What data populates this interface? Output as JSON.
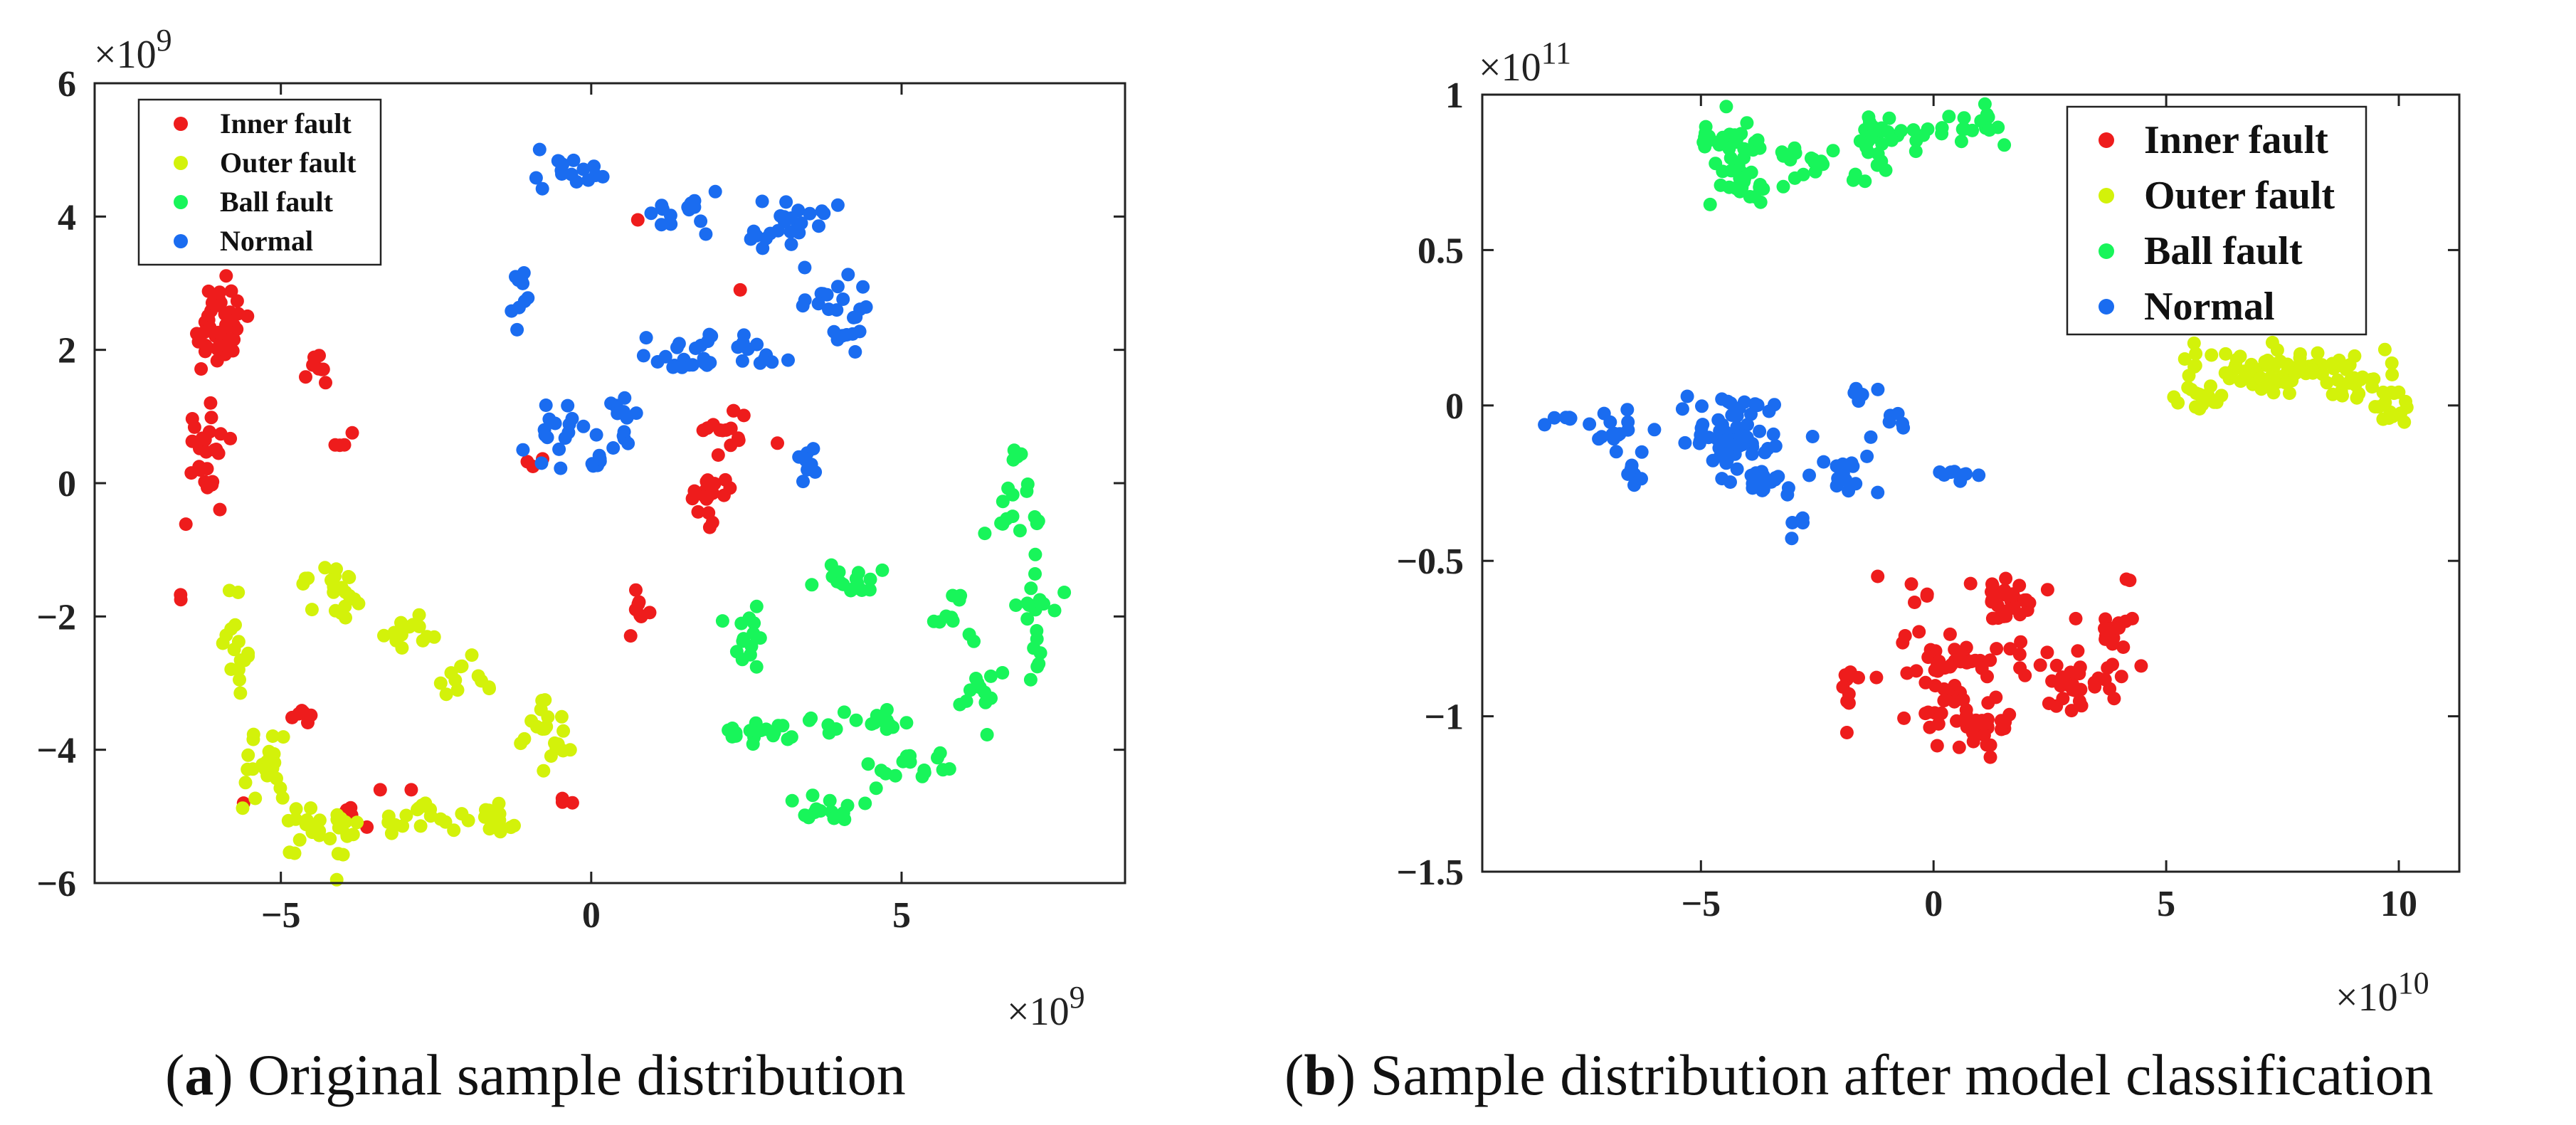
{
  "chart_data": [
    {
      "type": "scatter",
      "id": "a",
      "caption_letter": "a",
      "caption": "Original sample distribution",
      "x_exponent_label": "×10",
      "x_exponent": "9",
      "y_exponent_label": "×10",
      "y_exponent": "9",
      "xlim": [
        -8,
        8.6
      ],
      "ylim": [
        -6,
        6
      ],
      "xticks": [
        -5,
        0,
        5
      ],
      "xtick_labels": [
        "−5",
        "0",
        "5"
      ],
      "yticks": [
        -6,
        -4,
        -2,
        0,
        2,
        4,
        6
      ],
      "ytick_labels": [
        "−6",
        "−4",
        "−2",
        "0",
        "2",
        "4",
        "6"
      ],
      "grid": false,
      "legend": {
        "placement": "top-left",
        "size": "small"
      },
      "series": [
        {
          "name": "Inner fault",
          "color": "#ee1c1c",
          "clusters": [
            {
              "cx": -6.0,
              "cy": 2.3,
              "rx": 0.45,
              "ry": 0.6,
              "n": 45
            },
            {
              "cx": -6.2,
              "cy": 0.6,
              "rx": 0.3,
              "ry": 0.8,
              "n": 25
            },
            {
              "cx": -4.4,
              "cy": 1.8,
              "rx": 0.4,
              "ry": 0.2,
              "n": 9
            },
            {
              "cx": -3.9,
              "cy": 0.65,
              "rx": 0.2,
              "ry": 0.15,
              "n": 4
            },
            {
              "cx": 1.9,
              "cy": -0.2,
              "rx": 0.35,
              "ry": 0.35,
              "n": 18
            },
            {
              "cx": 2.2,
              "cy": 0.75,
              "rx": 0.3,
              "ry": 0.3,
              "n": 14
            },
            {
              "cx": 0.85,
              "cy": -1.9,
              "rx": 0.15,
              "ry": 0.35,
              "n": 8
            },
            {
              "cx": -4.8,
              "cy": -3.5,
              "rx": 0.5,
              "ry": 0.2,
              "n": 6
            },
            {
              "cx": -3.8,
              "cy": -4.95,
              "rx": 0.4,
              "ry": 0.2,
              "n": 6
            },
            {
              "cx": -0.4,
              "cy": -4.8,
              "rx": 0.15,
              "ry": 0.08,
              "n": 3
            },
            {
              "cx": -6.6,
              "cy": -1.75,
              "rx": 0.05,
              "ry": 0.05,
              "n": 2
            },
            {
              "cx": -1.0,
              "cy": 0.4,
              "rx": 0.2,
              "ry": 0.1,
              "n": 3
            }
          ],
          "points": [
            [
              0.75,
              3.95
            ],
            [
              2.4,
              2.9
            ],
            [
              3.0,
              0.6
            ],
            [
              -2.9,
              -4.6
            ],
            [
              -5.6,
              -4.8
            ],
            [
              -3.4,
              -4.6
            ]
          ]
        },
        {
          "name": "Outer fault",
          "color": "#d3f20a",
          "clusters": [
            {
              "cx": -4.2,
              "cy": -1.5,
              "rx": 0.5,
              "ry": 0.3,
              "n": 22
            },
            {
              "cx": -3.0,
              "cy": -2.3,
              "rx": 0.4,
              "ry": 0.25,
              "n": 14
            },
            {
              "cx": -2.0,
              "cy": -3.0,
              "rx": 0.35,
              "ry": 0.3,
              "n": 12
            },
            {
              "cx": -0.9,
              "cy": -3.6,
              "rx": 0.35,
              "ry": 0.3,
              "n": 12
            },
            {
              "cx": -0.5,
              "cy": -4.0,
              "rx": 0.25,
              "ry": 0.2,
              "n": 8
            },
            {
              "cx": -5.7,
              "cy": -2.6,
              "rx": 0.3,
              "ry": 0.8,
              "n": 16
            },
            {
              "cx": -5.3,
              "cy": -4.2,
              "rx": 0.45,
              "ry": 0.6,
              "n": 22
            },
            {
              "cx": -4.3,
              "cy": -5.3,
              "rx": 0.6,
              "ry": 0.35,
              "n": 26
            },
            {
              "cx": -2.7,
              "cy": -5.0,
              "rx": 0.6,
              "ry": 0.25,
              "n": 18
            },
            {
              "cx": -1.5,
              "cy": -5.05,
              "rx": 0.45,
              "ry": 0.25,
              "n": 14
            }
          ],
          "points": [
            [
              -4.1,
              -5.95
            ]
          ]
        },
        {
          "name": "Ball fault",
          "color": "#18f55a",
          "clusters": [
            {
              "cx": 2.6,
              "cy": -2.2,
              "rx": 0.55,
              "ry": 0.5,
              "n": 14
            },
            {
              "cx": 4.2,
              "cy": -1.45,
              "rx": 0.8,
              "ry": 0.2,
              "n": 16
            },
            {
              "cx": 5.8,
              "cy": -2.0,
              "rx": 0.35,
              "ry": 0.35,
              "n": 10
            },
            {
              "cx": 3.0,
              "cy": -3.7,
              "rx": 0.8,
              "ry": 0.15,
              "n": 18
            },
            {
              "cx": 4.6,
              "cy": -3.6,
              "rx": 0.6,
              "ry": 0.2,
              "n": 14
            },
            {
              "cx": 3.7,
              "cy": -4.9,
              "rx": 0.6,
              "ry": 0.25,
              "n": 14
            },
            {
              "cx": 5.2,
              "cy": -4.2,
              "rx": 0.6,
              "ry": 0.3,
              "n": 16
            },
            {
              "cx": 6.3,
              "cy": -3.2,
              "rx": 0.3,
              "ry": 0.4,
              "n": 12
            },
            {
              "cx": 7.2,
              "cy": -1.8,
              "rx": 0.3,
              "ry": 1.0,
              "n": 22
            },
            {
              "cx": 6.7,
              "cy": -0.4,
              "rx": 0.4,
              "ry": 0.4,
              "n": 12
            },
            {
              "cx": 6.9,
              "cy": 0.35,
              "rx": 0.15,
              "ry": 0.15,
              "n": 4
            },
            {
              "cx": 2.3,
              "cy": -3.8,
              "rx": 0.15,
              "ry": 0.1,
              "n": 3
            }
          ],
          "points": []
        },
        {
          "name": "Normal",
          "color": "#1a6cf0",
          "clusters": [
            {
              "cx": -0.3,
              "cy": 4.7,
              "rx": 0.5,
              "ry": 0.3,
              "n": 16
            },
            {
              "cx": 1.4,
              "cy": 4.1,
              "rx": 0.5,
              "ry": 0.3,
              "n": 14
            },
            {
              "cx": 3.2,
              "cy": 4.0,
              "rx": 0.6,
              "ry": 0.35,
              "n": 18
            },
            {
              "cx": 2.7,
              "cy": 3.6,
              "rx": 0.3,
              "ry": 0.25,
              "n": 6
            },
            {
              "cx": -1.1,
              "cy": 2.9,
              "rx": 0.2,
              "ry": 0.45,
              "n": 10
            },
            {
              "cx": 3.8,
              "cy": 2.8,
              "rx": 0.6,
              "ry": 0.4,
              "n": 16
            },
            {
              "cx": 4.2,
              "cy": 2.2,
              "rx": 0.3,
              "ry": 0.4,
              "n": 8
            },
            {
              "cx": 1.5,
              "cy": 1.9,
              "rx": 0.8,
              "ry": 0.3,
              "n": 24
            },
            {
              "cx": 2.7,
              "cy": 2.0,
              "rx": 0.4,
              "ry": 0.3,
              "n": 10
            },
            {
              "cx": 0.5,
              "cy": 0.9,
              "rx": 0.3,
              "ry": 0.6,
              "n": 14
            },
            {
              "cx": -0.5,
              "cy": 0.8,
              "rx": 0.4,
              "ry": 0.35,
              "n": 14
            },
            {
              "cx": 0.2,
              "cy": 0.3,
              "rx": 0.3,
              "ry": 0.1,
              "n": 6
            },
            {
              "cx": 3.5,
              "cy": 0.3,
              "rx": 0.3,
              "ry": 0.3,
              "n": 10
            }
          ],
          "points": [
            [
              -1.1,
              0.5
            ],
            [
              -0.8,
              0.3
            ]
          ]
        }
      ]
    },
    {
      "type": "scatter",
      "id": "b",
      "caption_letter": "b",
      "caption": "Sample distribution after model classification",
      "x_exponent_label": "×10",
      "x_exponent": "10",
      "y_exponent_label": "×10",
      "y_exponent": "11",
      "xlim": [
        -9.7,
        11.3
      ],
      "ylim": [
        -1.5,
        1
      ],
      "xticks": [
        -5,
        0,
        5,
        10
      ],
      "xtick_labels": [
        "−5",
        "0",
        "5",
        "10"
      ],
      "yticks": [
        -1.5,
        -1,
        -0.5,
        0,
        0.5,
        1
      ],
      "ytick_labels": [
        "−1.5",
        "−1",
        "−0.5",
        "0",
        "0.5",
        "1"
      ],
      "grid": false,
      "legend": {
        "placement": "top-right",
        "size": "large"
      },
      "series": [
        {
          "name": "Inner fault",
          "color": "#ee1c1c",
          "clusters": [
            {
              "cx": 1.6,
              "cy": -0.62,
              "rx": 0.6,
              "ry": 0.07,
              "n": 30
            },
            {
              "cx": 0.3,
              "cy": -0.82,
              "rx": 1.1,
              "ry": 0.12,
              "n": 40
            },
            {
              "cx": 0.7,
              "cy": -1.02,
              "rx": 1.0,
              "ry": 0.08,
              "n": 36
            },
            {
              "cx": 2.8,
              "cy": -0.85,
              "rx": 1.4,
              "ry": 0.12,
              "n": 40
            },
            {
              "cx": 3.9,
              "cy": -0.7,
              "rx": 0.4,
              "ry": 0.07,
              "n": 10
            },
            {
              "cx": -1.8,
              "cy": -0.9,
              "rx": 0.25,
              "ry": 0.12,
              "n": 10
            },
            {
              "cx": -0.3,
              "cy": -0.6,
              "rx": 0.25,
              "ry": 0.04,
              "n": 4
            },
            {
              "cx": 4.2,
              "cy": -0.57,
              "rx": 0.1,
              "ry": 0.03,
              "n": 2
            }
          ],
          "points": [
            [
              -1.2,
              -0.55
            ]
          ]
        },
        {
          "name": "Outer fault",
          "color": "#d3f20a",
          "clusters": [
            {
              "cx": 6.5,
              "cy": 0.12,
              "rx": 1.0,
              "ry": 0.06,
              "n": 30
            },
            {
              "cx": 5.8,
              "cy": 0.02,
              "rx": 0.6,
              "ry": 0.04,
              "n": 14
            },
            {
              "cx": 8.0,
              "cy": 0.12,
              "rx": 1.0,
              "ry": 0.05,
              "n": 36
            },
            {
              "cx": 9.1,
              "cy": 0.05,
              "rx": 0.5,
              "ry": 0.07,
              "n": 16
            },
            {
              "cx": 9.9,
              "cy": 0.02,
              "rx": 0.35,
              "ry": 0.1,
              "n": 16
            },
            {
              "cx": 7.3,
              "cy": 0.08,
              "rx": 0.6,
              "ry": 0.05,
              "n": 14
            }
          ],
          "points": [
            [
              5.6,
              0.2
            ],
            [
              9.7,
              0.18
            ]
          ]
        },
        {
          "name": "Ball fault",
          "color": "#18f55a",
          "clusters": [
            {
              "cx": -4.3,
              "cy": 0.84,
              "rx": 0.6,
              "ry": 0.08,
              "n": 28
            },
            {
              "cx": -4.0,
              "cy": 0.7,
              "rx": 0.8,
              "ry": 0.05,
              "n": 24
            },
            {
              "cx": -2.8,
              "cy": 0.78,
              "rx": 0.5,
              "ry": 0.05,
              "n": 14
            },
            {
              "cx": -1.0,
              "cy": 0.87,
              "rx": 0.7,
              "ry": 0.06,
              "n": 26
            },
            {
              "cx": 0.8,
              "cy": 0.9,
              "rx": 0.6,
              "ry": 0.04,
              "n": 18
            },
            {
              "cx": -1.4,
              "cy": 0.76,
              "rx": 0.3,
              "ry": 0.03,
              "n": 6
            }
          ],
          "points": []
        },
        {
          "name": "Normal",
          "color": "#1a6cf0",
          "clusters": [
            {
              "cx": -4.4,
              "cy": -0.12,
              "rx": 0.9,
              "ry": 0.08,
              "n": 60
            },
            {
              "cx": -3.8,
              "cy": -0.25,
              "rx": 0.6,
              "ry": 0.06,
              "n": 18
            },
            {
              "cx": -4.2,
              "cy": 0.0,
              "rx": 0.8,
              "ry": 0.03,
              "n": 14
            },
            {
              "cx": -6.7,
              "cy": -0.08,
              "rx": 0.6,
              "ry": 0.06,
              "n": 16
            },
            {
              "cx": -7.8,
              "cy": -0.06,
              "rx": 0.3,
              "ry": 0.03,
              "n": 6
            },
            {
              "cx": -6.5,
              "cy": -0.22,
              "rx": 0.25,
              "ry": 0.04,
              "n": 6
            },
            {
              "cx": -1.8,
              "cy": -0.2,
              "rx": 0.6,
              "ry": 0.07,
              "n": 14
            },
            {
              "cx": -1.6,
              "cy": 0.04,
              "rx": 0.35,
              "ry": 0.02,
              "n": 6
            },
            {
              "cx": -0.8,
              "cy": -0.05,
              "rx": 0.2,
              "ry": 0.05,
              "n": 5
            },
            {
              "cx": 0.6,
              "cy": -0.22,
              "rx": 0.8,
              "ry": 0.02,
              "n": 8
            },
            {
              "cx": -2.8,
              "cy": -0.38,
              "rx": 0.2,
              "ry": 0.04,
              "n": 5
            }
          ],
          "points": [
            [
              -2.6,
              -0.1
            ],
            [
              -1.2,
              -0.28
            ]
          ]
        }
      ]
    }
  ]
}
